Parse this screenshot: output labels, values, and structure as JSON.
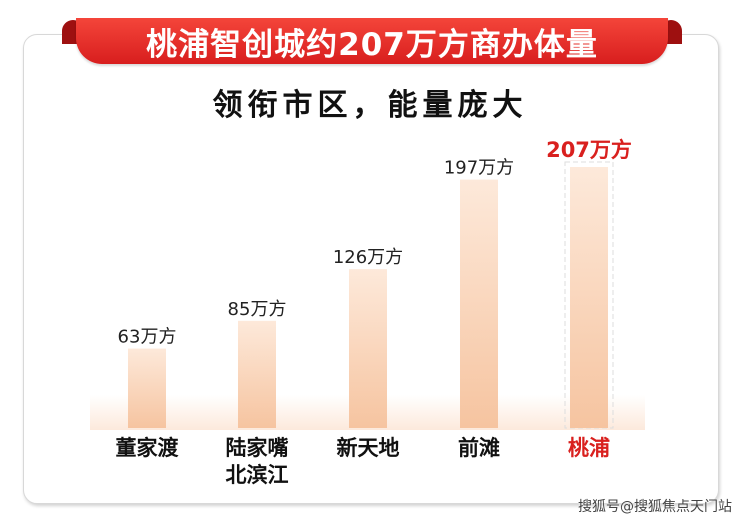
{
  "header": {
    "title": "桃浦智创城约207万方商办体量",
    "subtitle": "领衔市区，能量庞大"
  },
  "watermark": "搜狐号@搜狐焦点天门站",
  "colors": {
    "ribbon": "#e52d27",
    "highlight": "#d9201e",
    "bar": "#f7c9a6"
  },
  "chart_data": {
    "type": "bar",
    "categories": [
      "董家渡",
      "陆家嘴\n北滨江",
      "新天地",
      "前滩",
      "桃浦"
    ],
    "values": [
      63,
      85,
      126,
      197,
      207
    ],
    "data_labels": [
      "63万方",
      "85万方",
      "126万方",
      "197万方",
      "207万方"
    ],
    "unit": "万方",
    "highlight_index": 4,
    "ylim": [
      0,
      207
    ],
    "grid": false,
    "title": "桃浦智创城约207万方商办体量"
  }
}
